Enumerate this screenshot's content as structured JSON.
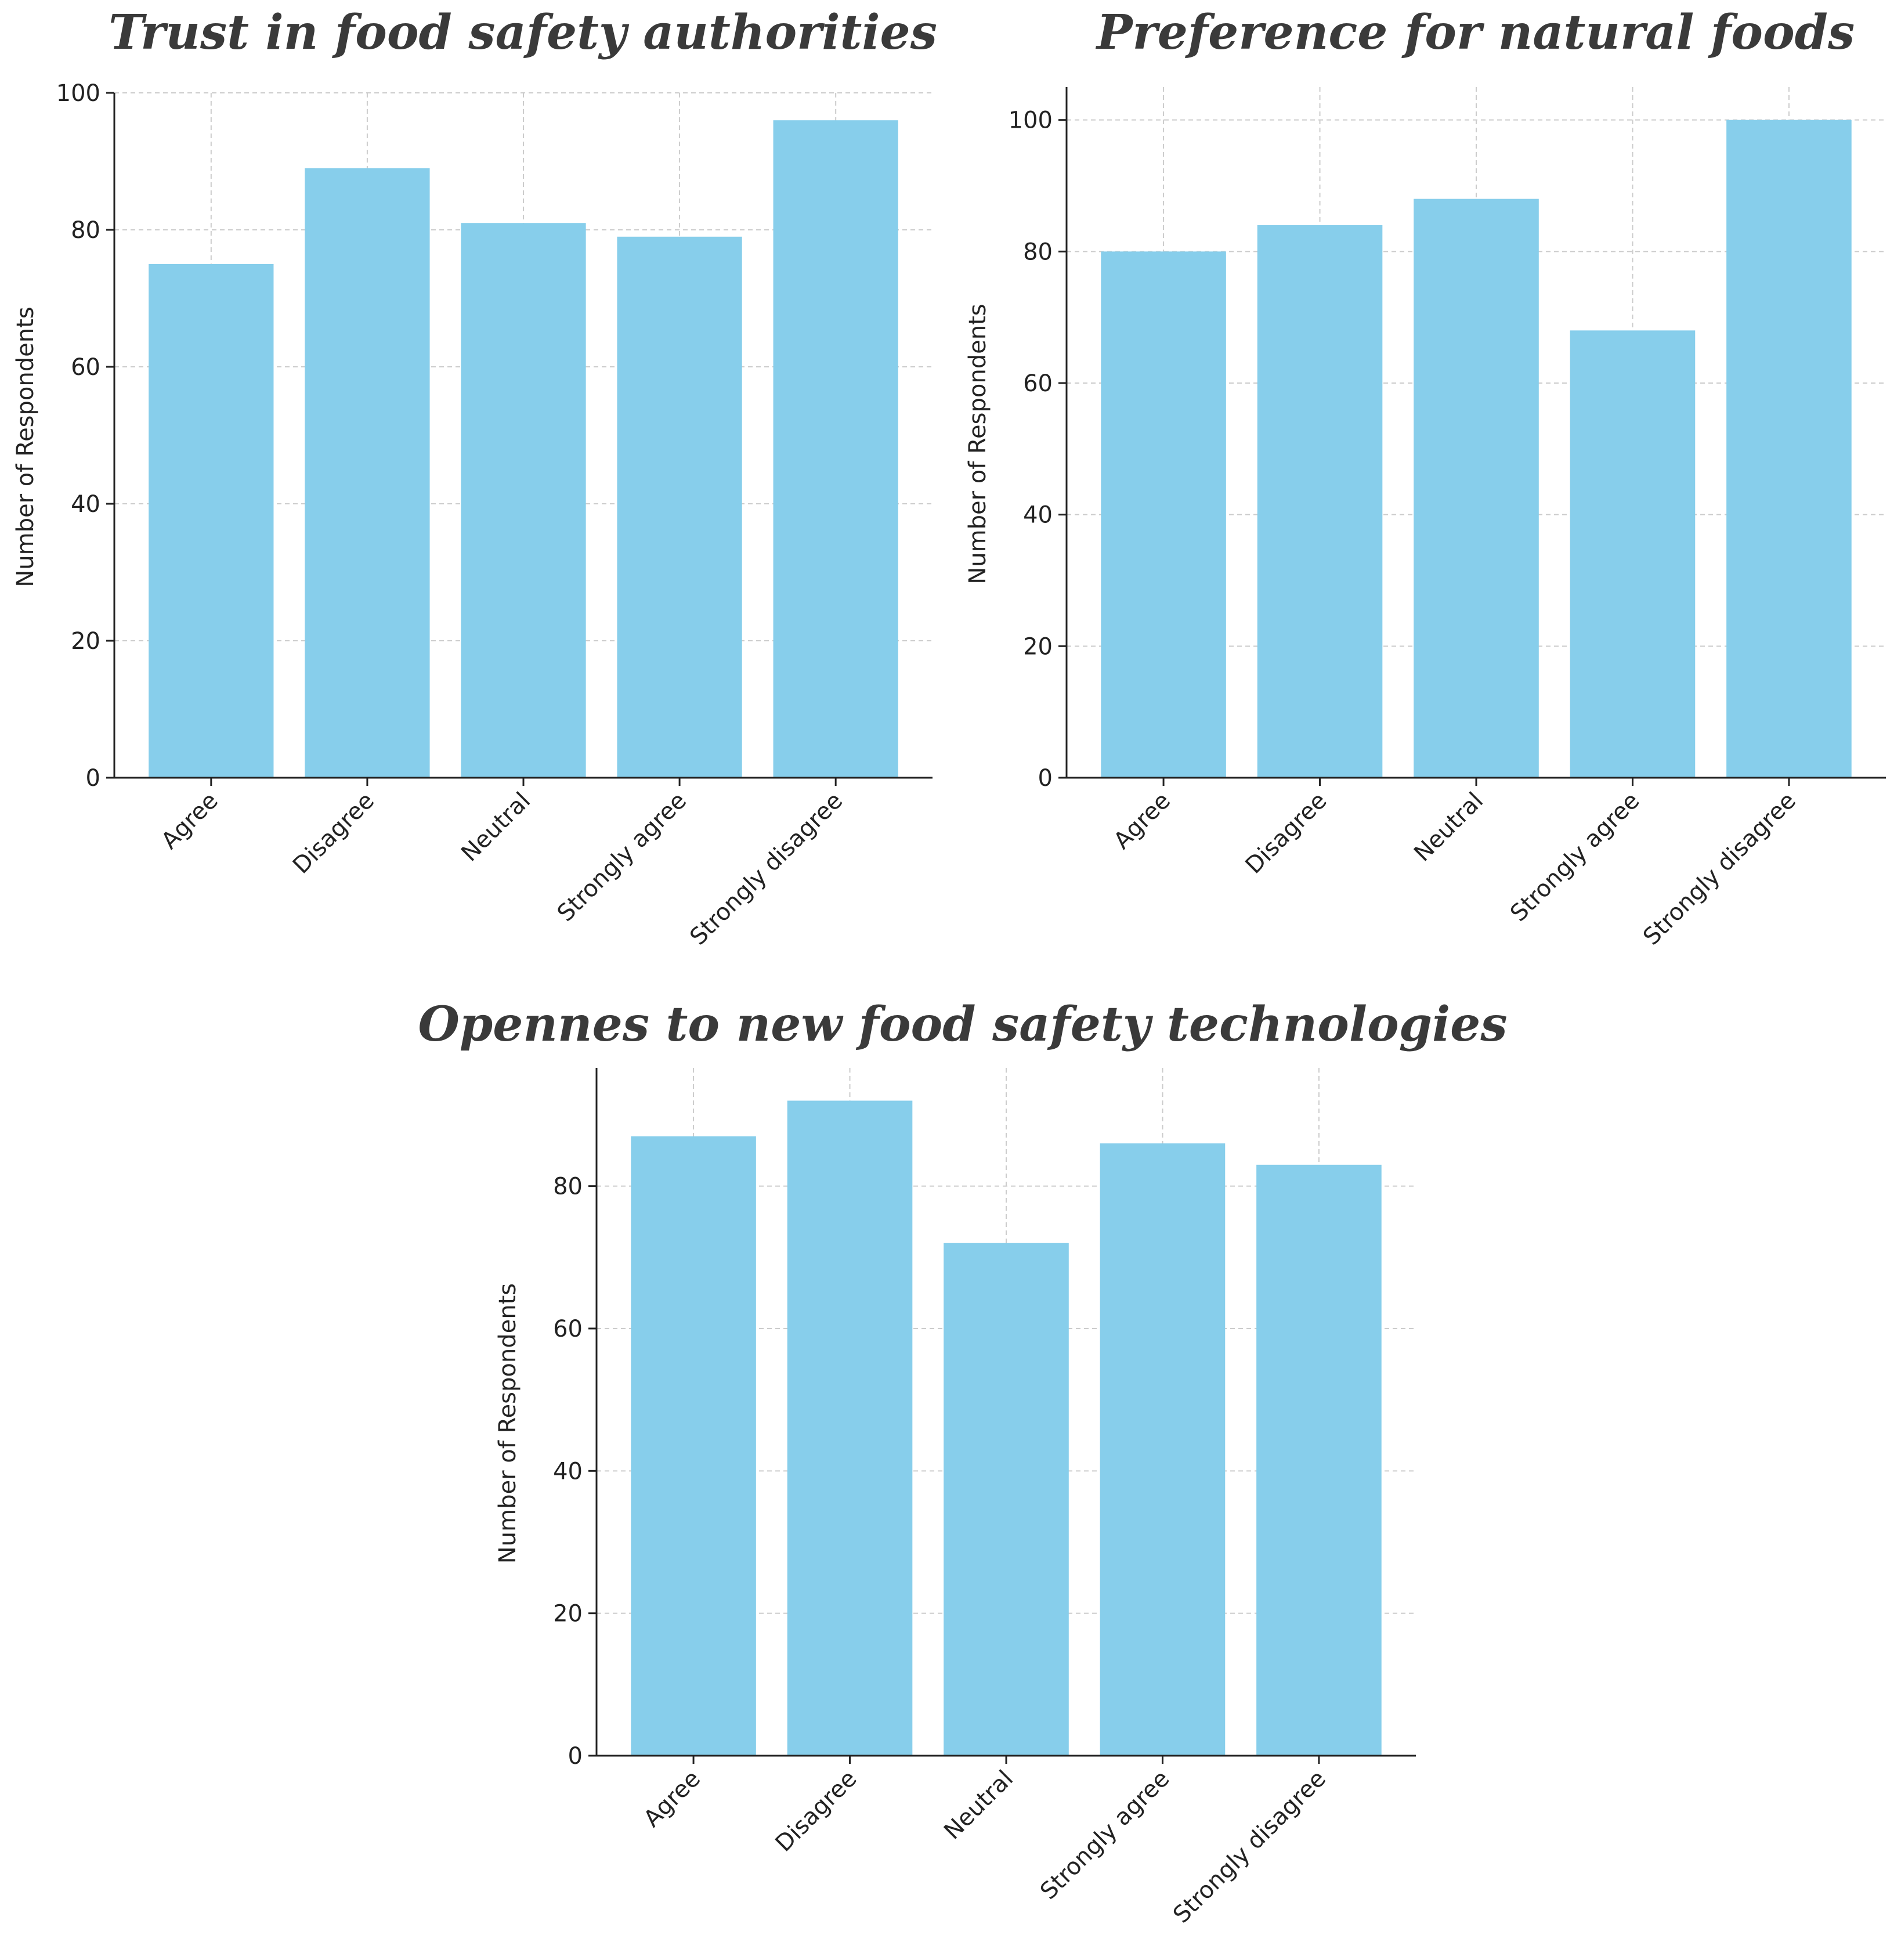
{
  "colors": {
    "bar": "#87CEEB",
    "grid": "#cccccc",
    "axis": "#222222",
    "title": "#3a3a3a"
  },
  "chart_data": [
    {
      "type": "bar",
      "title": "Trust in food safety authorities",
      "xlabel": "",
      "ylabel": "Number of Respondents",
      "categories": [
        "Agree",
        "Disagree",
        "Neutral",
        "Strongly agree",
        "Strongly disagree"
      ],
      "values": [
        75,
        89,
        81,
        79,
        96
      ],
      "ylim": [
        0,
        100
      ],
      "yticks": [
        0,
        20,
        40,
        60,
        80,
        100
      ],
      "grid": true
    },
    {
      "type": "bar",
      "title": "Preference for natural foods",
      "xlabel": "",
      "ylabel": "Number of Respondents",
      "categories": [
        "Agree",
        "Disagree",
        "Neutral",
        "Strongly agree",
        "Strongly disagree"
      ],
      "values": [
        80,
        84,
        88,
        68,
        100
      ],
      "ylim": [
        0,
        105
      ],
      "yticks": [
        0,
        20,
        40,
        60,
        80,
        100
      ],
      "grid": true
    },
    {
      "type": "bar",
      "title": "Opennes to new food safety technologies",
      "xlabel": "",
      "ylabel": "Number of Respondents",
      "categories": [
        "Agree",
        "Disagree",
        "Neutral",
        "Strongly agree",
        "Strongly disagree"
      ],
      "values": [
        87,
        92,
        72,
        86,
        83
      ],
      "ylim": [
        0,
        96.6
      ],
      "yticks": [
        0,
        20,
        40,
        60,
        80
      ],
      "grid": true
    }
  ]
}
